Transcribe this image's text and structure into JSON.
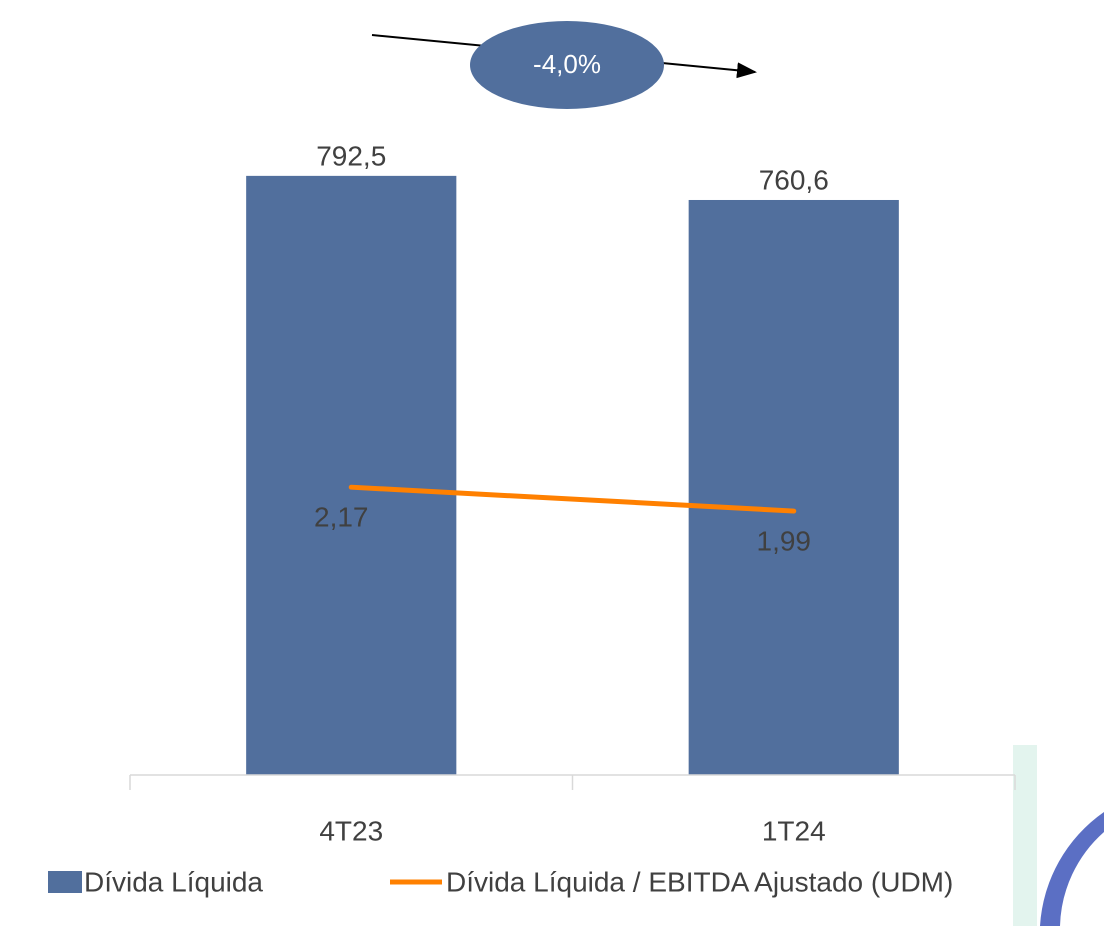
{
  "chart_data": {
    "type": "bar_line",
    "categories": [
      "4T23",
      "1T24"
    ],
    "series": [
      {
        "name": "Dívida Líquida",
        "type": "bar",
        "color": "#516f9d",
        "values": [
          792.5,
          760.6
        ],
        "value_labels": [
          "792,5",
          "760,6"
        ]
      },
      {
        "name": "Dívida Líquida / EBITDA Ajustado (UDM)",
        "type": "line",
        "axis": "y2",
        "color": "#ff8000",
        "values": [
          2.17,
          1.99
        ],
        "value_labels": [
          "2,17",
          "1,99"
        ]
      }
    ],
    "ylim": [
      0,
      1000
    ],
    "y2lim": [
      0,
      5.7
    ],
    "annotation": "-4,0%"
  }
}
